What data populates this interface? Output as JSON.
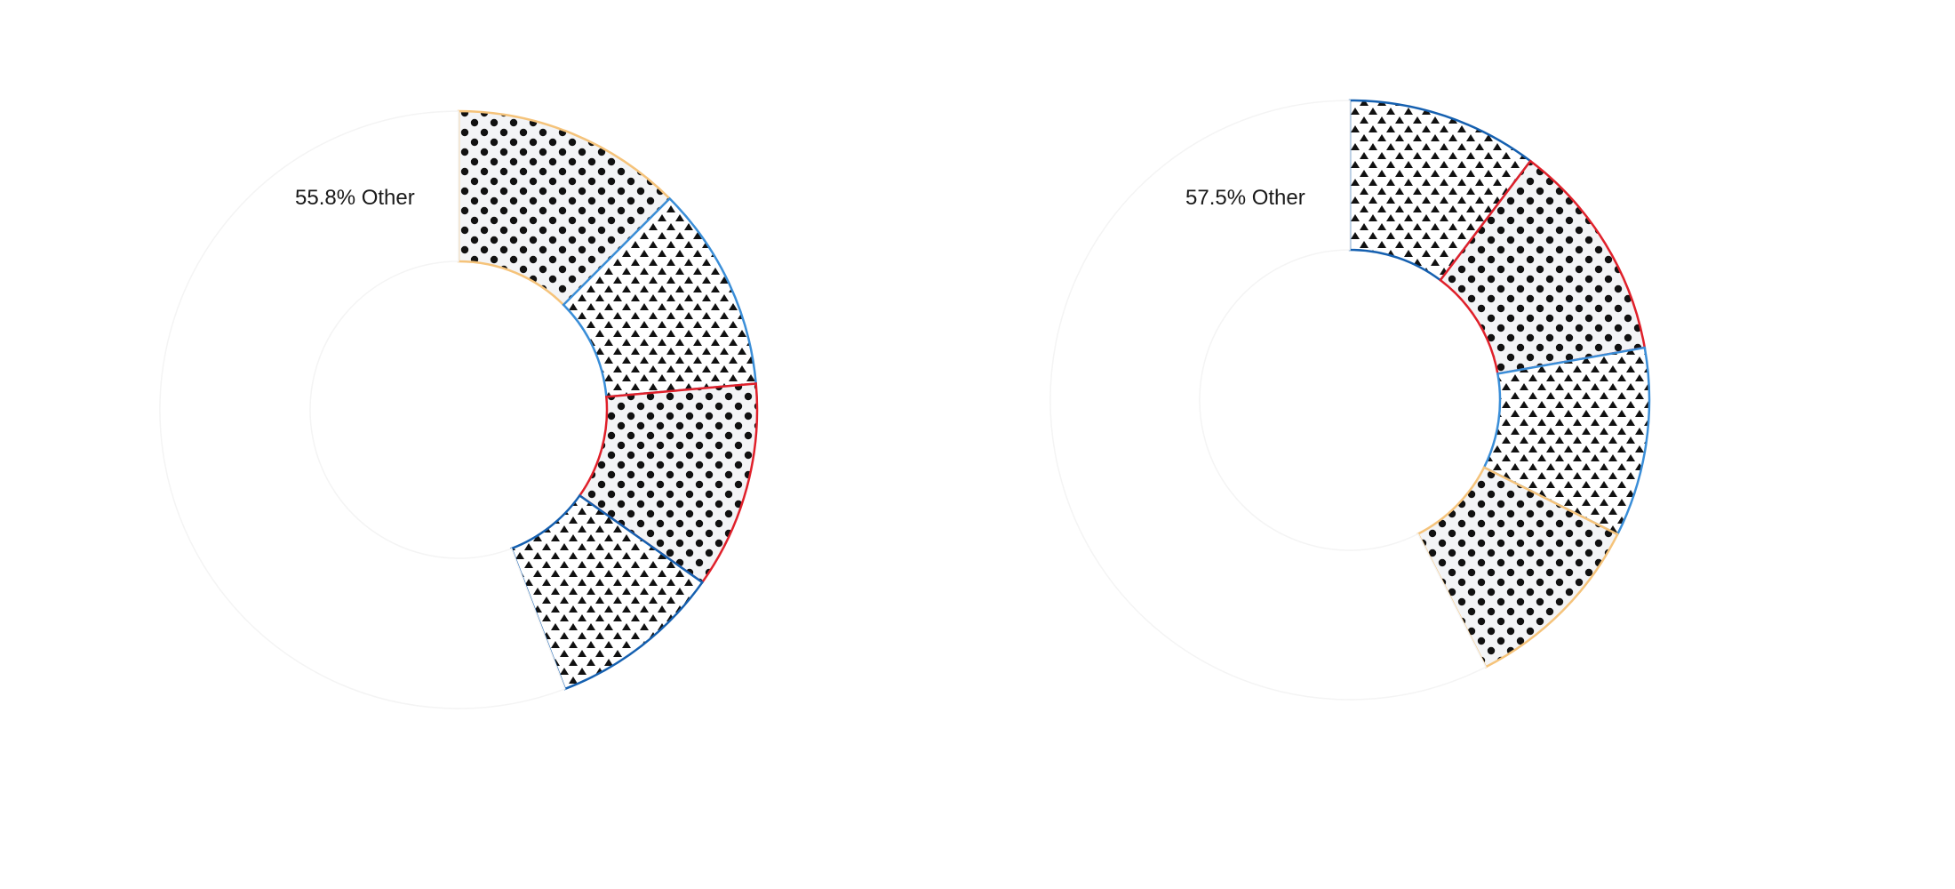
{
  "chart_data": [
    {
      "type": "pie",
      "donut": true,
      "annotation": "55.8% Other",
      "slices": [
        {
          "label": "Other",
          "percent": 55.8,
          "color": "#ffffff",
          "pattern": "none"
        },
        {
          "percent": 12.5,
          "color": "#f5c37a",
          "pattern": "dots"
        },
        {
          "percent": 11.1,
          "color": "#3a8ed8",
          "pattern": "triangles"
        },
        {
          "percent": 11.2,
          "color": "#e0202a",
          "pattern": "dots"
        },
        {
          "percent": 9.4,
          "color": "#1560b0",
          "pattern": "triangles"
        }
      ]
    },
    {
      "type": "pie",
      "donut": true,
      "annotation": "57.5% Other",
      "slices": [
        {
          "label": "Other",
          "percent": 57.5,
          "color": "#ffffff",
          "pattern": "none"
        },
        {
          "percent": 10.3,
          "color": "#1560b0",
          "pattern": "triangles"
        },
        {
          "percent": 11.9,
          "color": "#e0202a",
          "pattern": "dots"
        },
        {
          "percent": 10.2,
          "color": "#3a8ed8",
          "pattern": "triangles"
        },
        {
          "percent": 10.1,
          "color": "#f5c37a",
          "pattern": "dots"
        }
      ]
    }
  ]
}
